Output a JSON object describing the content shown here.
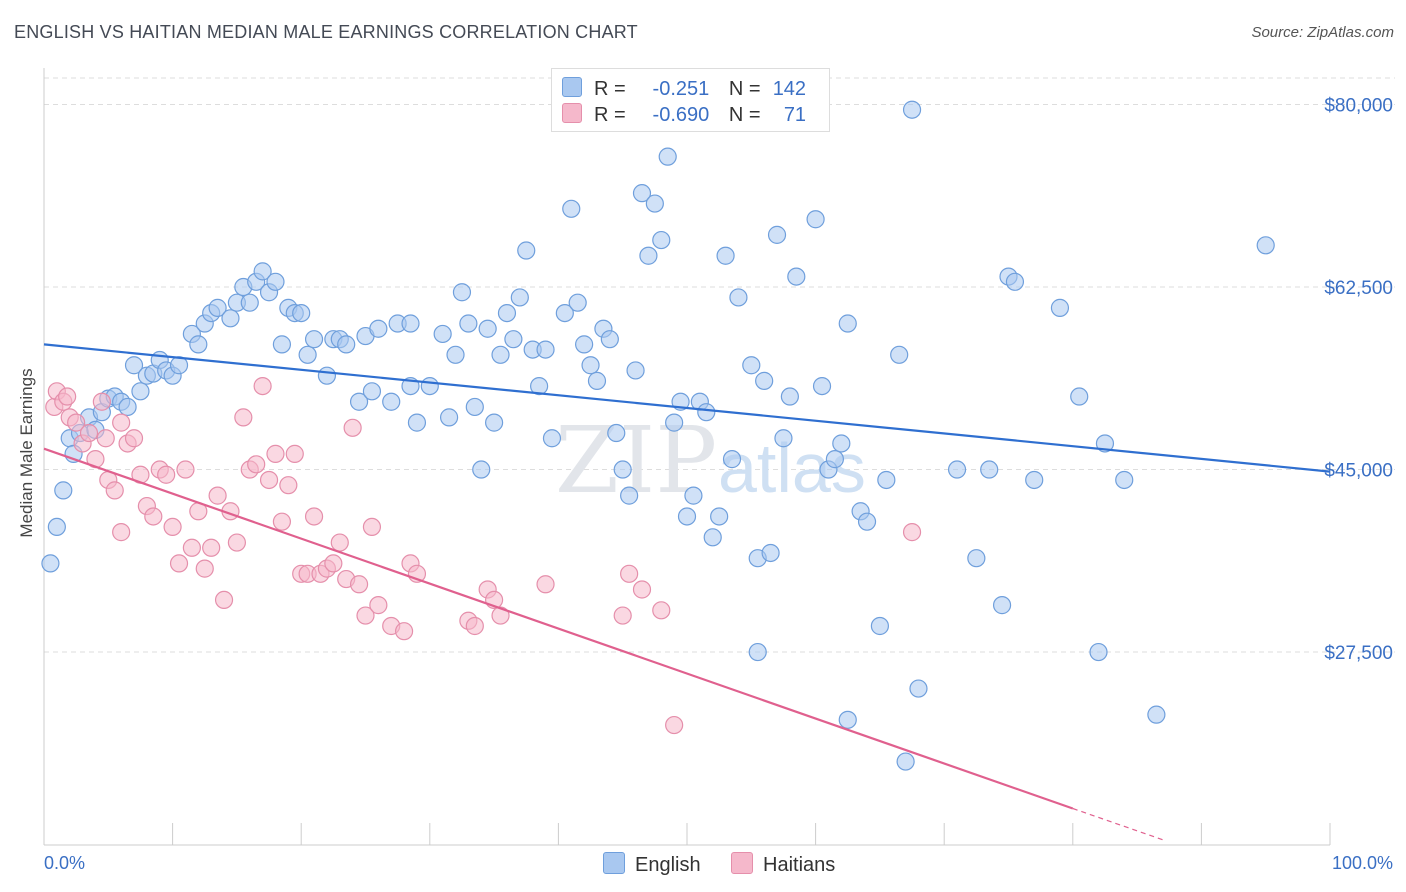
{
  "title": "ENGLISH VS HAITIAN MEDIAN MALE EARNINGS CORRELATION CHART",
  "source": "Source: ZipAtlas.com",
  "watermark": {
    "zip": "ZIP",
    "atlas": "atlas"
  },
  "legend": {
    "english": {
      "r_label": "R =",
      "r_value": "-0.251",
      "n_label": "N =",
      "n_value": "142"
    },
    "haitians": {
      "r_label": "R =",
      "r_value": "-0.690",
      "n_label": "N =",
      "n_value": "71"
    }
  },
  "bottom_legend": {
    "english": "English",
    "haitians": "Haitians"
  },
  "colors": {
    "english_fill": "#a9c8f0",
    "english_stroke": "#6f9fdc",
    "english_line": "#2f6fd0",
    "haitians_fill": "#f5b8cb",
    "haitians_stroke": "#e58fab",
    "haitians_line": "#e0608e",
    "grid": "#dddddd",
    "tick_text": "#3a6fc4"
  },
  "chart_data": {
    "type": "scatter",
    "title": "ENGLISH VS HAITIAN MEDIAN MALE EARNINGS CORRELATION CHART",
    "xlabel": "",
    "ylabel": "Median Male Earnings",
    "xlim": [
      0,
      100
    ],
    "ylim": [
      9000,
      83500
    ],
    "x_tick_labels": [
      "0.0%",
      "100.0%"
    ],
    "y_ticks": [
      27500,
      45000,
      62500,
      80000
    ],
    "y_tick_labels": [
      "$27,500",
      "$45,000",
      "$62,500",
      "$80,000"
    ],
    "grid": true,
    "legend_position": "top-center",
    "series": [
      {
        "name": "English",
        "trend": {
          "x": [
            0,
            100
          ],
          "y": [
            57000,
            44800
          ]
        },
        "points": [
          [
            0.5,
            36000
          ],
          [
            1.0,
            39500
          ],
          [
            1.5,
            43000
          ],
          [
            2.0,
            48000
          ],
          [
            2.3,
            46500
          ],
          [
            2.8,
            48500
          ],
          [
            3.5,
            50000
          ],
          [
            4.0,
            48800
          ],
          [
            4.5,
            50500
          ],
          [
            5.0,
            51800
          ],
          [
            5.5,
            52000
          ],
          [
            6.0,
            51500
          ],
          [
            6.5,
            51000
          ],
          [
            7.0,
            55000
          ],
          [
            7.5,
            52500
          ],
          [
            8.0,
            54000
          ],
          [
            8.5,
            54200
          ],
          [
            9.0,
            55500
          ],
          [
            9.5,
            54500
          ],
          [
            10.0,
            54000
          ],
          [
            10.5,
            55000
          ],
          [
            11.5,
            58000
          ],
          [
            12.0,
            57000
          ],
          [
            12.5,
            59000
          ],
          [
            13.0,
            60000
          ],
          [
            13.5,
            60500
          ],
          [
            14.5,
            59500
          ],
          [
            15.0,
            61000
          ],
          [
            15.5,
            62500
          ],
          [
            16.0,
            61000
          ],
          [
            16.5,
            63000
          ],
          [
            17.0,
            64000
          ],
          [
            17.5,
            62000
          ],
          [
            18.0,
            63000
          ],
          [
            18.5,
            57000
          ],
          [
            19.0,
            60500
          ],
          [
            19.5,
            60000
          ],
          [
            20.0,
            60000
          ],
          [
            20.5,
            56000
          ],
          [
            21.0,
            57500
          ],
          [
            22.0,
            54000
          ],
          [
            22.5,
            57500
          ],
          [
            23.0,
            57500
          ],
          [
            23.5,
            57000
          ],
          [
            24.5,
            51500
          ],
          [
            25.0,
            57800
          ],
          [
            25.5,
            52500
          ],
          [
            26.0,
            58500
          ],
          [
            27.0,
            51500
          ],
          [
            27.5,
            59000
          ],
          [
            28.5,
            59000
          ],
          [
            28.5,
            53000
          ],
          [
            29.0,
            49500
          ],
          [
            30.0,
            53000
          ],
          [
            31.0,
            58000
          ],
          [
            31.5,
            50000
          ],
          [
            32.0,
            56000
          ],
          [
            32.5,
            62000
          ],
          [
            33.0,
            59000
          ],
          [
            33.5,
            51000
          ],
          [
            34.0,
            45000
          ],
          [
            34.5,
            58500
          ],
          [
            35.0,
            49500
          ],
          [
            35.5,
            56000
          ],
          [
            36.0,
            60000
          ],
          [
            36.5,
            57500
          ],
          [
            37.0,
            61500
          ],
          [
            37.5,
            66000
          ],
          [
            38.0,
            56500
          ],
          [
            38.5,
            53000
          ],
          [
            39.0,
            56500
          ],
          [
            39.5,
            48000
          ],
          [
            40.5,
            60000
          ],
          [
            41.0,
            70000
          ],
          [
            41.5,
            61000
          ],
          [
            42.0,
            57000
          ],
          [
            42.5,
            55000
          ],
          [
            43.0,
            53500
          ],
          [
            43.5,
            58500
          ],
          [
            44.0,
            57500
          ],
          [
            44.5,
            48500
          ],
          [
            45.0,
            45000
          ],
          [
            45.5,
            42500
          ],
          [
            46.0,
            54500
          ],
          [
            46.5,
            71500
          ],
          [
            47.0,
            65500
          ],
          [
            47.5,
            70500
          ],
          [
            48.0,
            67000
          ],
          [
            48.5,
            75000
          ],
          [
            49.0,
            49500
          ],
          [
            49.5,
            51500
          ],
          [
            50.0,
            40500
          ],
          [
            50.5,
            42500
          ],
          [
            51.0,
            51500
          ],
          [
            51.5,
            50500
          ],
          [
            52.0,
            38500
          ],
          [
            52.5,
            40500
          ],
          [
            53.0,
            65500
          ],
          [
            53.5,
            46000
          ],
          [
            54.0,
            61500
          ],
          [
            55.0,
            55000
          ],
          [
            55.5,
            36500
          ],
          [
            55.5,
            27500
          ],
          [
            56.0,
            53500
          ],
          [
            56.5,
            37000
          ],
          [
            57.0,
            67500
          ],
          [
            57.5,
            48000
          ],
          [
            58.0,
            52000
          ],
          [
            58.5,
            63500
          ],
          [
            60.0,
            69000
          ],
          [
            60.5,
            53000
          ],
          [
            61.0,
            45000
          ],
          [
            61.5,
            46000
          ],
          [
            62.0,
            47500
          ],
          [
            62.5,
            59000
          ],
          [
            62.5,
            21000
          ],
          [
            63.5,
            41000
          ],
          [
            64.0,
            40000
          ],
          [
            65.0,
            30000
          ],
          [
            65.5,
            44000
          ],
          [
            66.5,
            56000
          ],
          [
            67.0,
            17000
          ],
          [
            67.5,
            79500
          ],
          [
            68.0,
            24000
          ],
          [
            71.0,
            45000
          ],
          [
            72.5,
            36500
          ],
          [
            73.5,
            45000
          ],
          [
            74.5,
            32000
          ],
          [
            75.0,
            63500
          ],
          [
            75.5,
            63000
          ],
          [
            77.0,
            44000
          ],
          [
            79.0,
            60500
          ],
          [
            80.5,
            52000
          ],
          [
            82.0,
            27500
          ],
          [
            82.5,
            47500
          ],
          [
            84.0,
            44000
          ],
          [
            86.5,
            21500
          ],
          [
            95.0,
            66500
          ]
        ]
      },
      {
        "name": "Haitians",
        "trend": {
          "x": [
            0,
            80
          ],
          "y": [
            47000,
            12500
          ]
        },
        "trend_dashed": {
          "x": [
            80,
            87
          ],
          "y": [
            12500,
            9500
          ]
        },
        "points": [
          [
            0.8,
            51000
          ],
          [
            1.0,
            52500
          ],
          [
            1.5,
            51500
          ],
          [
            1.8,
            52000
          ],
          [
            2.0,
            50000
          ],
          [
            2.5,
            49500
          ],
          [
            3.0,
            47500
          ],
          [
            3.5,
            48500
          ],
          [
            4.0,
            46000
          ],
          [
            4.5,
            51500
          ],
          [
            4.8,
            48000
          ],
          [
            5.0,
            44000
          ],
          [
            5.5,
            43000
          ],
          [
            6.0,
            49500
          ],
          [
            6.0,
            39000
          ],
          [
            6.5,
            47500
          ],
          [
            7.0,
            48000
          ],
          [
            7.5,
            44500
          ],
          [
            8.0,
            41500
          ],
          [
            8.5,
            40500
          ],
          [
            9.0,
            45000
          ],
          [
            9.5,
            44500
          ],
          [
            10.0,
            39500
          ],
          [
            10.5,
            36000
          ],
          [
            11.0,
            45000
          ],
          [
            11.5,
            37500
          ],
          [
            12.0,
            41000
          ],
          [
            12.5,
            35500
          ],
          [
            13.0,
            37500
          ],
          [
            13.5,
            42500
          ],
          [
            14.0,
            32500
          ],
          [
            14.5,
            41000
          ],
          [
            15.0,
            38000
          ],
          [
            15.5,
            50000
          ],
          [
            16.0,
            45000
          ],
          [
            16.5,
            45500
          ],
          [
            17.0,
            53000
          ],
          [
            17.5,
            44000
          ],
          [
            18.0,
            46500
          ],
          [
            18.5,
            40000
          ],
          [
            19.0,
            43500
          ],
          [
            19.5,
            46500
          ],
          [
            20.0,
            35000
          ],
          [
            20.5,
            35000
          ],
          [
            21.0,
            40500
          ],
          [
            21.5,
            35000
          ],
          [
            22.0,
            35500
          ],
          [
            22.5,
            36000
          ],
          [
            23.0,
            38000
          ],
          [
            23.5,
            34500
          ],
          [
            24.0,
            49000
          ],
          [
            24.5,
            34000
          ],
          [
            25.0,
            31000
          ],
          [
            25.5,
            39500
          ],
          [
            26.0,
            32000
          ],
          [
            27.0,
            30000
          ],
          [
            28.0,
            29500
          ],
          [
            28.5,
            36000
          ],
          [
            29.0,
            35000
          ],
          [
            33.0,
            30500
          ],
          [
            33.5,
            30000
          ],
          [
            34.5,
            33500
          ],
          [
            35.0,
            32500
          ],
          [
            35.5,
            31000
          ],
          [
            39.0,
            34000
          ],
          [
            45.0,
            31000
          ],
          [
            45.5,
            35000
          ],
          [
            46.5,
            33500
          ],
          [
            48.0,
            31500
          ],
          [
            49.0,
            20500
          ],
          [
            67.5,
            39000
          ]
        ]
      }
    ]
  }
}
